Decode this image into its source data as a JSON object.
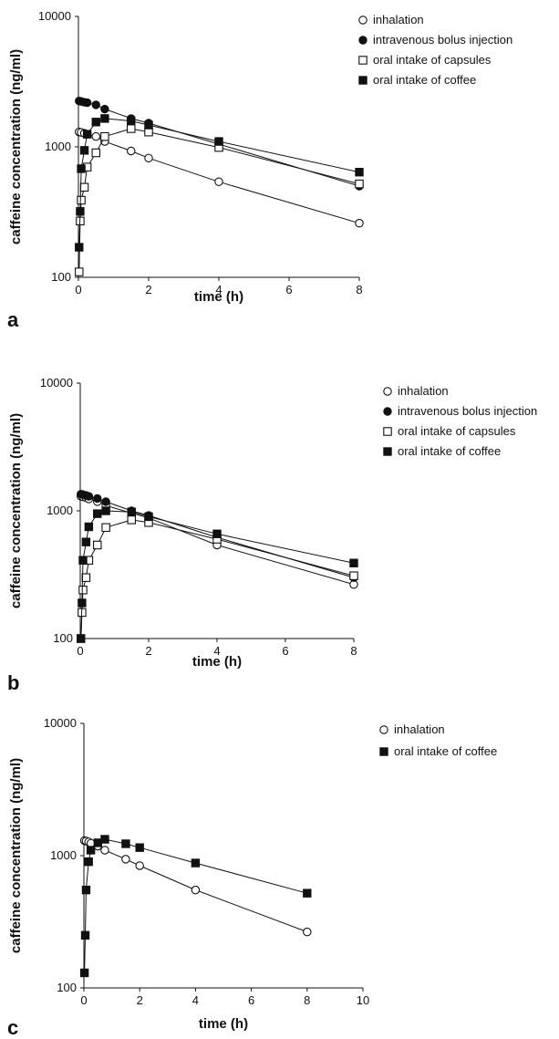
{
  "figure": {
    "panels": [
      {
        "letter": "a"
      },
      {
        "letter": "b"
      },
      {
        "letter": "c"
      }
    ]
  },
  "chart_data": [
    {
      "type": "scatter",
      "panel": "a",
      "xlabel": "time (h)",
      "ylabel": "caffeine concentration (ng/ml)",
      "xlim": [
        0,
        8
      ],
      "xticks": [
        0,
        2,
        4,
        6,
        8
      ],
      "ylim": [
        100,
        10000
      ],
      "yscale": "log",
      "yticks": [
        100,
        1000,
        10000
      ],
      "grid": false,
      "legend_position": "right",
      "series": [
        {
          "name": "inhalation",
          "marker": "open-circle",
          "x": [
            0.02,
            0.08,
            0.17,
            0.25,
            0.5,
            0.75,
            1.5,
            2,
            4,
            8
          ],
          "y": [
            1300,
            1290,
            1270,
            1250,
            1200,
            1100,
            930,
            820,
            540,
            260
          ]
        },
        {
          "name": "intravenous bolus injection",
          "marker": "filled-circle",
          "x": [
            0.02,
            0.08,
            0.17,
            0.25,
            0.5,
            0.75,
            1.5,
            2,
            4,
            8
          ],
          "y": [
            2250,
            2230,
            2200,
            2180,
            2100,
            1950,
            1650,
            1520,
            1050,
            500
          ]
        },
        {
          "name": "oral intake of capsules",
          "marker": "open-square",
          "x": [
            0.02,
            0.05,
            0.08,
            0.17,
            0.25,
            0.5,
            0.75,
            1.5,
            2,
            4,
            8
          ],
          "y": [
            110,
            270,
            390,
            490,
            700,
            900,
            1200,
            1380,
            1300,
            990,
            520
          ]
        },
        {
          "name": "oral intake of coffee",
          "marker": "filled-square",
          "x": [
            0.02,
            0.05,
            0.08,
            0.17,
            0.25,
            0.5,
            0.75,
            1.5,
            2,
            4,
            8
          ],
          "y": [
            170,
            320,
            680,
            940,
            1250,
            1550,
            1650,
            1580,
            1470,
            1100,
            640
          ]
        }
      ]
    },
    {
      "type": "scatter",
      "panel": "b",
      "xlabel": "time (h)",
      "ylabel": "caffeine concentration (ng/ml)",
      "xlim": [
        0,
        8
      ],
      "xticks": [
        0,
        2,
        4,
        6,
        8
      ],
      "ylim": [
        100,
        10000
      ],
      "yscale": "log",
      "yticks": [
        100,
        1000,
        10000
      ],
      "grid": false,
      "legend_position": "right",
      "series": [
        {
          "name": "inhalation",
          "marker": "open-circle",
          "x": [
            0.02,
            0.08,
            0.17,
            0.25,
            0.5,
            0.75,
            1.5,
            2,
            4,
            8
          ],
          "y": [
            1300,
            1290,
            1270,
            1240,
            1180,
            1100,
            960,
            880,
            540,
            265
          ]
        },
        {
          "name": "intravenous bolus injection",
          "marker": "filled-circle",
          "x": [
            0.02,
            0.08,
            0.17,
            0.25,
            0.5,
            0.75,
            1.5,
            2,
            4,
            8
          ],
          "y": [
            1350,
            1340,
            1320,
            1300,
            1250,
            1180,
            1000,
            920,
            620,
            300
          ]
        },
        {
          "name": "oral intake of capsules",
          "marker": "open-square",
          "x": [
            0.02,
            0.05,
            0.08,
            0.17,
            0.25,
            0.5,
            0.75,
            1.5,
            2,
            4,
            8
          ],
          "y": [
            100,
            160,
            240,
            300,
            410,
            540,
            740,
            850,
            810,
            600,
            310
          ]
        },
        {
          "name": "oral intake of coffee",
          "marker": "filled-square",
          "x": [
            0.02,
            0.05,
            0.08,
            0.17,
            0.25,
            0.5,
            0.75,
            1.5,
            2,
            4,
            8
          ],
          "y": [
            100,
            190,
            410,
            570,
            750,
            950,
            1000,
            980,
            900,
            660,
            390
          ]
        }
      ]
    },
    {
      "type": "scatter",
      "panel": "c",
      "xlabel": "time (h)",
      "ylabel": "caffeine concentration (ng/ml)",
      "xlim": [
        0,
        10
      ],
      "xticks": [
        0,
        2,
        4,
        6,
        8,
        10
      ],
      "ylim": [
        100,
        10000
      ],
      "yscale": "log",
      "yticks": [
        100,
        1000,
        10000
      ],
      "grid": false,
      "legend_position": "right",
      "series": [
        {
          "name": "inhalation",
          "marker": "open-circle",
          "x": [
            0.02,
            0.08,
            0.17,
            0.25,
            0.5,
            0.75,
            1.5,
            2,
            4,
            8
          ],
          "y": [
            1300,
            1290,
            1270,
            1240,
            1180,
            1100,
            940,
            840,
            550,
            265
          ]
        },
        {
          "name": "oral intake of coffee",
          "marker": "filled-square",
          "x": [
            0.02,
            0.05,
            0.08,
            0.17,
            0.25,
            0.5,
            0.75,
            1.5,
            2,
            4,
            8
          ],
          "y": [
            130,
            250,
            550,
            900,
            1100,
            1250,
            1330,
            1230,
            1150,
            880,
            520
          ]
        }
      ]
    }
  ]
}
